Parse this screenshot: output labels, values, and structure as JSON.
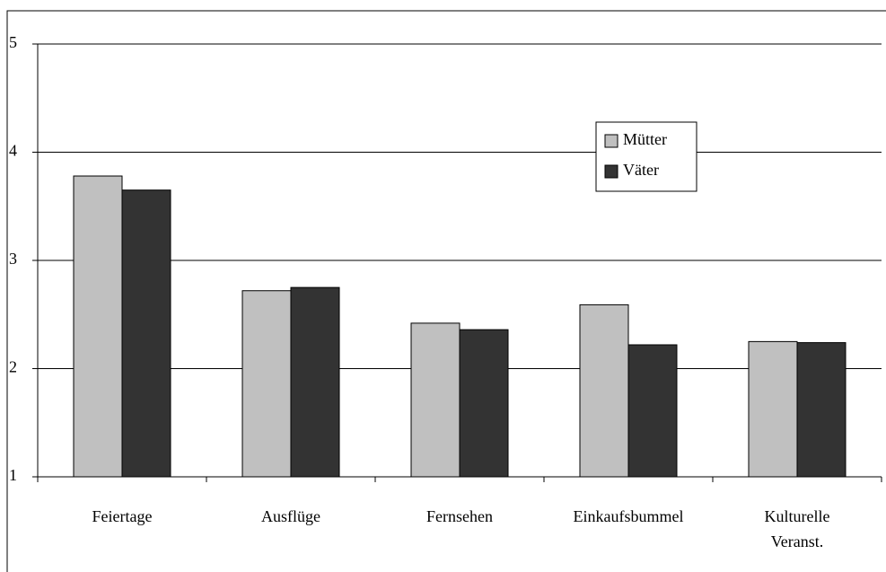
{
  "chart_data": {
    "type": "bar",
    "categories": [
      "Feiertage",
      "Ausflüge",
      "Fernsehen",
      "Einkaufsbummel",
      "Kulturelle\nVeranst."
    ],
    "series": [
      {
        "name": "Mütter",
        "color": "#c0c0c0",
        "values": [
          3.78,
          2.72,
          2.42,
          2.59,
          2.25
        ]
      },
      {
        "name": "Väter",
        "color": "#333333",
        "values": [
          3.65,
          2.75,
          2.36,
          2.22,
          2.24
        ]
      }
    ],
    "ylim": [
      1,
      5
    ],
    "yticks": [
      1,
      2,
      3,
      4,
      5
    ],
    "grid": true,
    "legend": "upper right"
  }
}
